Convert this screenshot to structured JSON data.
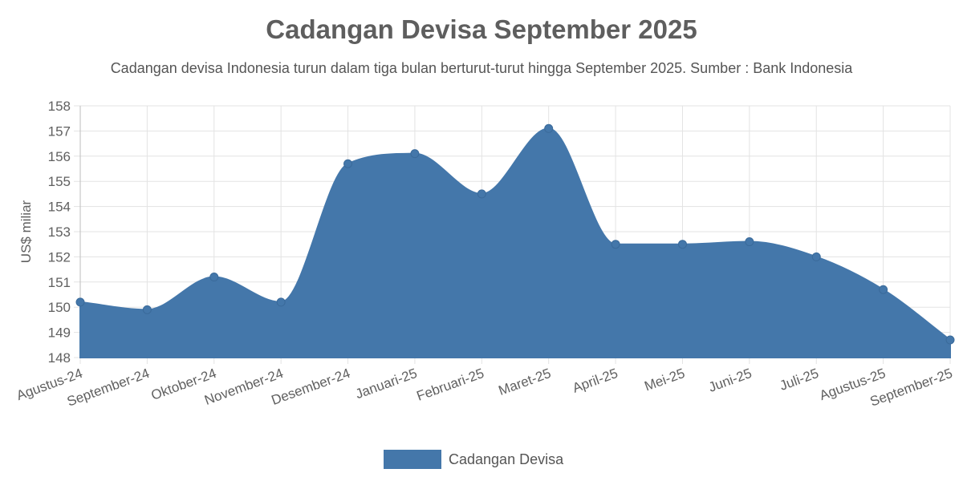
{
  "colors": {
    "series": "#4477aa",
    "grid": "#e3e3e3",
    "axis": "#bdbdbd",
    "text": "#606060"
  },
  "chart_data": {
    "type": "area",
    "title": "Cadangan Devisa September 2025",
    "subtitle": "Cadangan devisa Indonesia turun dalam tiga bulan berturut-turut hingga September 2025. Sumber : Bank Indonesia",
    "xlabel": "",
    "ylabel": "US$ miliar",
    "ylim": [
      148,
      158
    ],
    "yticks": [
      "148",
      "149",
      "150",
      "151",
      "152",
      "153",
      "154",
      "155",
      "156",
      "157",
      "158"
    ],
    "grid": true,
    "legend_position": "bottom",
    "categories": [
      "Agustus-24",
      "September-24",
      "Oktober-24",
      "November-24",
      "Desember-24",
      "Januari-25",
      "Februari-25",
      "Maret-25",
      "April-25",
      "Mei-25",
      "Juni-25",
      "Juli-25",
      "Agustus-25",
      "September-25"
    ],
    "series": [
      {
        "name": "Cadangan Devisa",
        "values": [
          150.2,
          149.9,
          151.2,
          150.2,
          155.7,
          156.1,
          154.5,
          157.1,
          152.5,
          152.5,
          152.6,
          152.0,
          150.7,
          148.7
        ]
      }
    ]
  }
}
